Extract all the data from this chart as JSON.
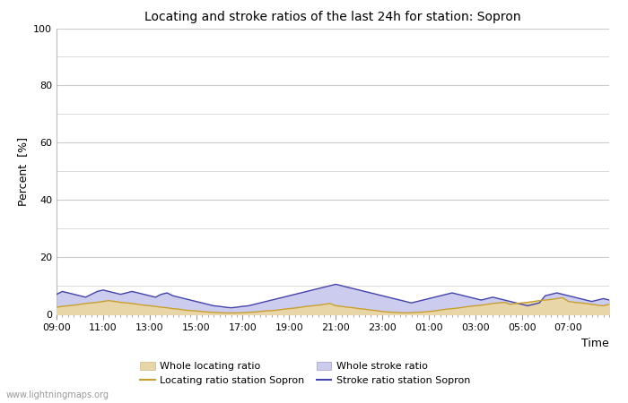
{
  "title": "Locating and stroke ratios of the last 24h for station: Sopron",
  "xlabel": "Time",
  "ylabel": "Percent  [%]",
  "xlim": [
    0,
    95
  ],
  "ylim": [
    0,
    100
  ],
  "yticks": [
    0,
    20,
    40,
    60,
    80,
    100
  ],
  "ytick_minor": [
    10,
    30,
    50,
    70,
    90
  ],
  "xtick_labels": [
    "09:00",
    "11:00",
    "13:00",
    "15:00",
    "17:00",
    "19:00",
    "21:00",
    "23:00",
    "01:00",
    "03:00",
    "05:00",
    "07:00"
  ],
  "xtick_positions": [
    0,
    8,
    16,
    24,
    32,
    40,
    48,
    56,
    64,
    72,
    80,
    88
  ],
  "bg_color": "#ffffff",
  "plot_bg_color": "#ffffff",
  "grid_color": "#cccccc",
  "whole_locating_fill_color": "#e8d5a8",
  "whole_stroke_fill_color": "#ccccee",
  "station_locating_color": "#c8a030",
  "station_stroke_color": "#4444aa",
  "watermark": "www.lightningmaps.org",
  "whole_locating_values": [
    2.5,
    2.8,
    3.0,
    3.2,
    3.5,
    3.8,
    4.0,
    4.2,
    4.5,
    4.8,
    4.5,
    4.2,
    4.0,
    3.8,
    3.5,
    3.2,
    3.0,
    2.8,
    2.5,
    2.3,
    2.0,
    1.8,
    1.5,
    1.3,
    1.2,
    1.0,
    0.8,
    0.7,
    0.6,
    0.5,
    0.5,
    0.5,
    0.6,
    0.7,
    0.8,
    1.0,
    1.2,
    1.3,
    1.5,
    1.8,
    2.0,
    2.2,
    2.5,
    2.8,
    3.0,
    3.2,
    3.5,
    3.8,
    3.0,
    2.8,
    2.5,
    2.3,
    2.0,
    1.8,
    1.5,
    1.3,
    1.0,
    0.8,
    0.7,
    0.6,
    0.5,
    0.6,
    0.7,
    0.8,
    1.0,
    1.2,
    1.5,
    1.8,
    2.0,
    2.2,
    2.5,
    2.8,
    3.0,
    3.2,
    3.5,
    3.8,
    4.0,
    4.2,
    3.5,
    3.8,
    4.0,
    4.2,
    4.5,
    4.8,
    5.0,
    5.2,
    5.5,
    5.8,
    4.5,
    4.2,
    4.0,
    3.8,
    3.5,
    3.2,
    3.0,
    3.5
  ],
  "whole_stroke_values": [
    7.0,
    8.0,
    7.5,
    7.0,
    6.5,
    6.0,
    7.0,
    8.0,
    8.5,
    8.0,
    7.5,
    7.0,
    7.5,
    8.0,
    7.5,
    7.0,
    6.5,
    6.0,
    7.0,
    7.5,
    6.5,
    6.0,
    5.5,
    5.0,
    4.5,
    4.0,
    3.5,
    3.0,
    2.8,
    2.5,
    2.3,
    2.5,
    2.8,
    3.0,
    3.5,
    4.0,
    4.5,
    5.0,
    5.5,
    6.0,
    6.5,
    7.0,
    7.5,
    8.0,
    8.5,
    9.0,
    9.5,
    10.0,
    10.5,
    10.0,
    9.5,
    9.0,
    8.5,
    8.0,
    7.5,
    7.0,
    6.5,
    6.0,
    5.5,
    5.0,
    4.5,
    4.0,
    4.5,
    5.0,
    5.5,
    6.0,
    6.5,
    7.0,
    7.5,
    7.0,
    6.5,
    6.0,
    5.5,
    5.0,
    5.5,
    6.0,
    5.5,
    5.0,
    4.5,
    4.0,
    3.5,
    3.0,
    3.5,
    4.0,
    6.5,
    7.0,
    7.5,
    7.0,
    6.5,
    6.0,
    5.5,
    5.0,
    4.5,
    5.0,
    5.5,
    5.0
  ],
  "station_locating_line": [
    2.5,
    2.8,
    3.0,
    3.2,
    3.5,
    3.8,
    4.0,
    4.2,
    4.5,
    4.8,
    4.5,
    4.2,
    4.0,
    3.8,
    3.5,
    3.2,
    3.0,
    2.8,
    2.5,
    2.3,
    2.0,
    1.8,
    1.5,
    1.3,
    1.2,
    1.0,
    0.8,
    0.7,
    0.6,
    0.5,
    0.5,
    0.5,
    0.6,
    0.7,
    0.8,
    1.0,
    1.2,
    1.3,
    1.5,
    1.8,
    2.0,
    2.2,
    2.5,
    2.8,
    3.0,
    3.2,
    3.5,
    3.8,
    3.0,
    2.8,
    2.5,
    2.3,
    2.0,
    1.8,
    1.5,
    1.3,
    1.0,
    0.8,
    0.7,
    0.6,
    0.5,
    0.6,
    0.7,
    0.8,
    1.0,
    1.2,
    1.5,
    1.8,
    2.0,
    2.2,
    2.5,
    2.8,
    3.0,
    3.2,
    3.5,
    3.8,
    4.0,
    4.2,
    3.5,
    3.8,
    4.0,
    4.2,
    4.5,
    4.8,
    5.0,
    5.2,
    5.5,
    5.8,
    4.5,
    4.2,
    4.0,
    3.8,
    3.5,
    3.2,
    3.0,
    3.5
  ],
  "station_stroke_line": [
    7.0,
    8.0,
    7.5,
    7.0,
    6.5,
    6.0,
    7.0,
    8.0,
    8.5,
    8.0,
    7.5,
    7.0,
    7.5,
    8.0,
    7.5,
    7.0,
    6.5,
    6.0,
    7.0,
    7.5,
    6.5,
    6.0,
    5.5,
    5.0,
    4.5,
    4.0,
    3.5,
    3.0,
    2.8,
    2.5,
    2.3,
    2.5,
    2.8,
    3.0,
    3.5,
    4.0,
    4.5,
    5.0,
    5.5,
    6.0,
    6.5,
    7.0,
    7.5,
    8.0,
    8.5,
    9.0,
    9.5,
    10.0,
    10.5,
    10.0,
    9.5,
    9.0,
    8.5,
    8.0,
    7.5,
    7.0,
    6.5,
    6.0,
    5.5,
    5.0,
    4.5,
    4.0,
    4.5,
    5.0,
    5.5,
    6.0,
    6.5,
    7.0,
    7.5,
    7.0,
    6.5,
    6.0,
    5.5,
    5.0,
    5.5,
    6.0,
    5.5,
    5.0,
    4.5,
    4.0,
    3.5,
    3.0,
    3.5,
    4.0,
    6.5,
    7.0,
    7.5,
    7.0,
    6.5,
    6.0,
    5.5,
    5.0,
    4.5,
    5.0,
    5.5,
    5.0
  ],
  "legend_entries": [
    "Whole locating ratio",
    "Locating ratio station Sopron",
    "Whole stroke ratio",
    "Stroke ratio station Sopron"
  ]
}
